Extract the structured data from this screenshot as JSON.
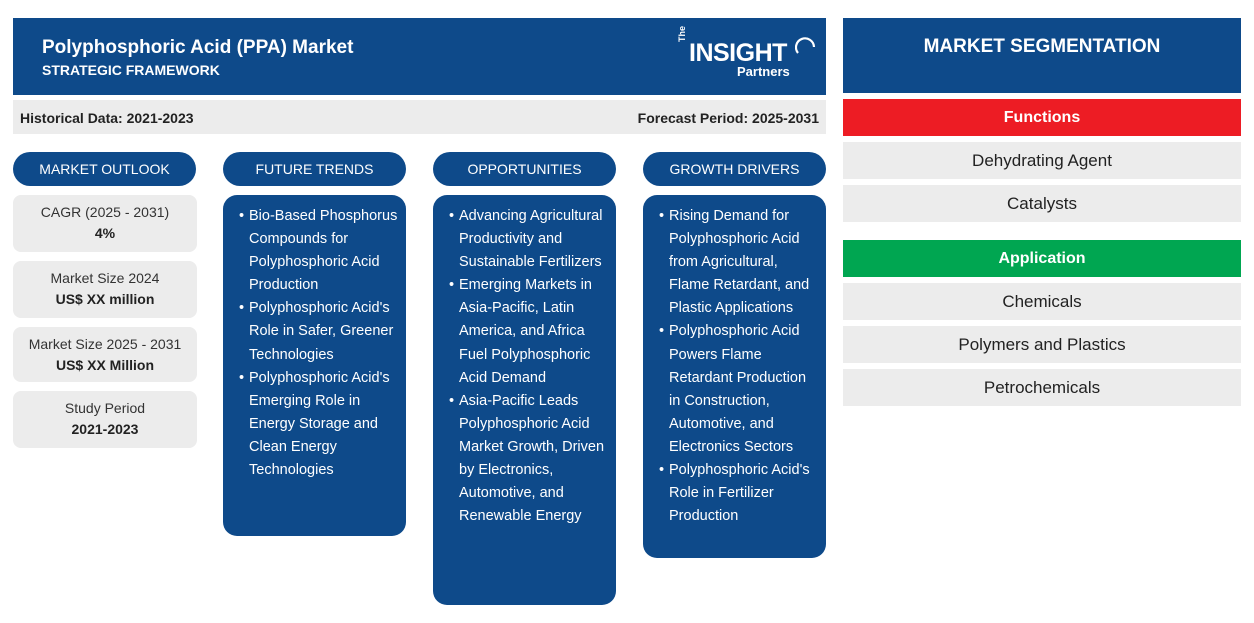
{
  "header": {
    "title": "Polyphosphoric Acid (PPA) Market",
    "subtitle": "STRATEGIC FRAMEWORK",
    "logo": {
      "the": "The",
      "insight": "INSIGHT",
      "partners": "Partners"
    }
  },
  "periods": {
    "historical": "Historical Data: 2021-2023",
    "forecast": "Forecast Period: 2025-2031"
  },
  "columns": {
    "outlook": "MARKET OUTLOOK",
    "trends": "FUTURE TRENDS",
    "opportunities": "OPPORTUNITIES",
    "drivers": "GROWTH DRIVERS"
  },
  "outlook": [
    {
      "label": "CAGR (2025 - 2031)",
      "value": "4%"
    },
    {
      "label": "Market Size 2024",
      "value": "US$ XX million"
    },
    {
      "label": "Market Size 2025 - 2031",
      "value": "US$ XX Million"
    },
    {
      "label": "Study Period",
      "value": "2021-2023"
    }
  ],
  "trends": [
    "Bio-Based Phosphorus Compounds for Polyphosphoric Acid Production",
    "Polyphosphoric Acid's Role in Safer, Greener Technologies",
    "Polyphosphoric Acid's Emerging Role in Energy Storage and Clean Energy Technologies"
  ],
  "opportunities": [
    "Advancing Agricultural Productivity and Sustainable Fertilizers",
    "Emerging Markets in Asia-Pacific, Latin America, and Africa Fuel Polyphosphoric Acid Demand",
    "Asia-Pacific Leads Polyphosphoric Acid Market Growth, Driven by Electronics, Automotive, and Renewable Energy"
  ],
  "drivers": [
    "Rising Demand for Polyphosphoric Acid from Agricultural, Flame Retardant, and Plastic Applications",
    "Polyphosphoric Acid Powers Flame Retardant Production in Construction, Automotive, and Electronics Sectors",
    "Polyphosphoric Acid's Role in Fertilizer Production"
  ],
  "segmentation": {
    "title": "MARKET SEGMENTATION",
    "functions": {
      "label": "Functions",
      "color": "#ed1c24",
      "items": [
        "Dehydrating Agent",
        "Catalysts"
      ]
    },
    "application": {
      "label": "Application",
      "color": "#00a651",
      "items": [
        "Chemicals",
        "Polymers and Plastics",
        "Petrochemicals"
      ]
    }
  },
  "colors": {
    "primary": "#0e4a8a",
    "light": "#ececec"
  }
}
